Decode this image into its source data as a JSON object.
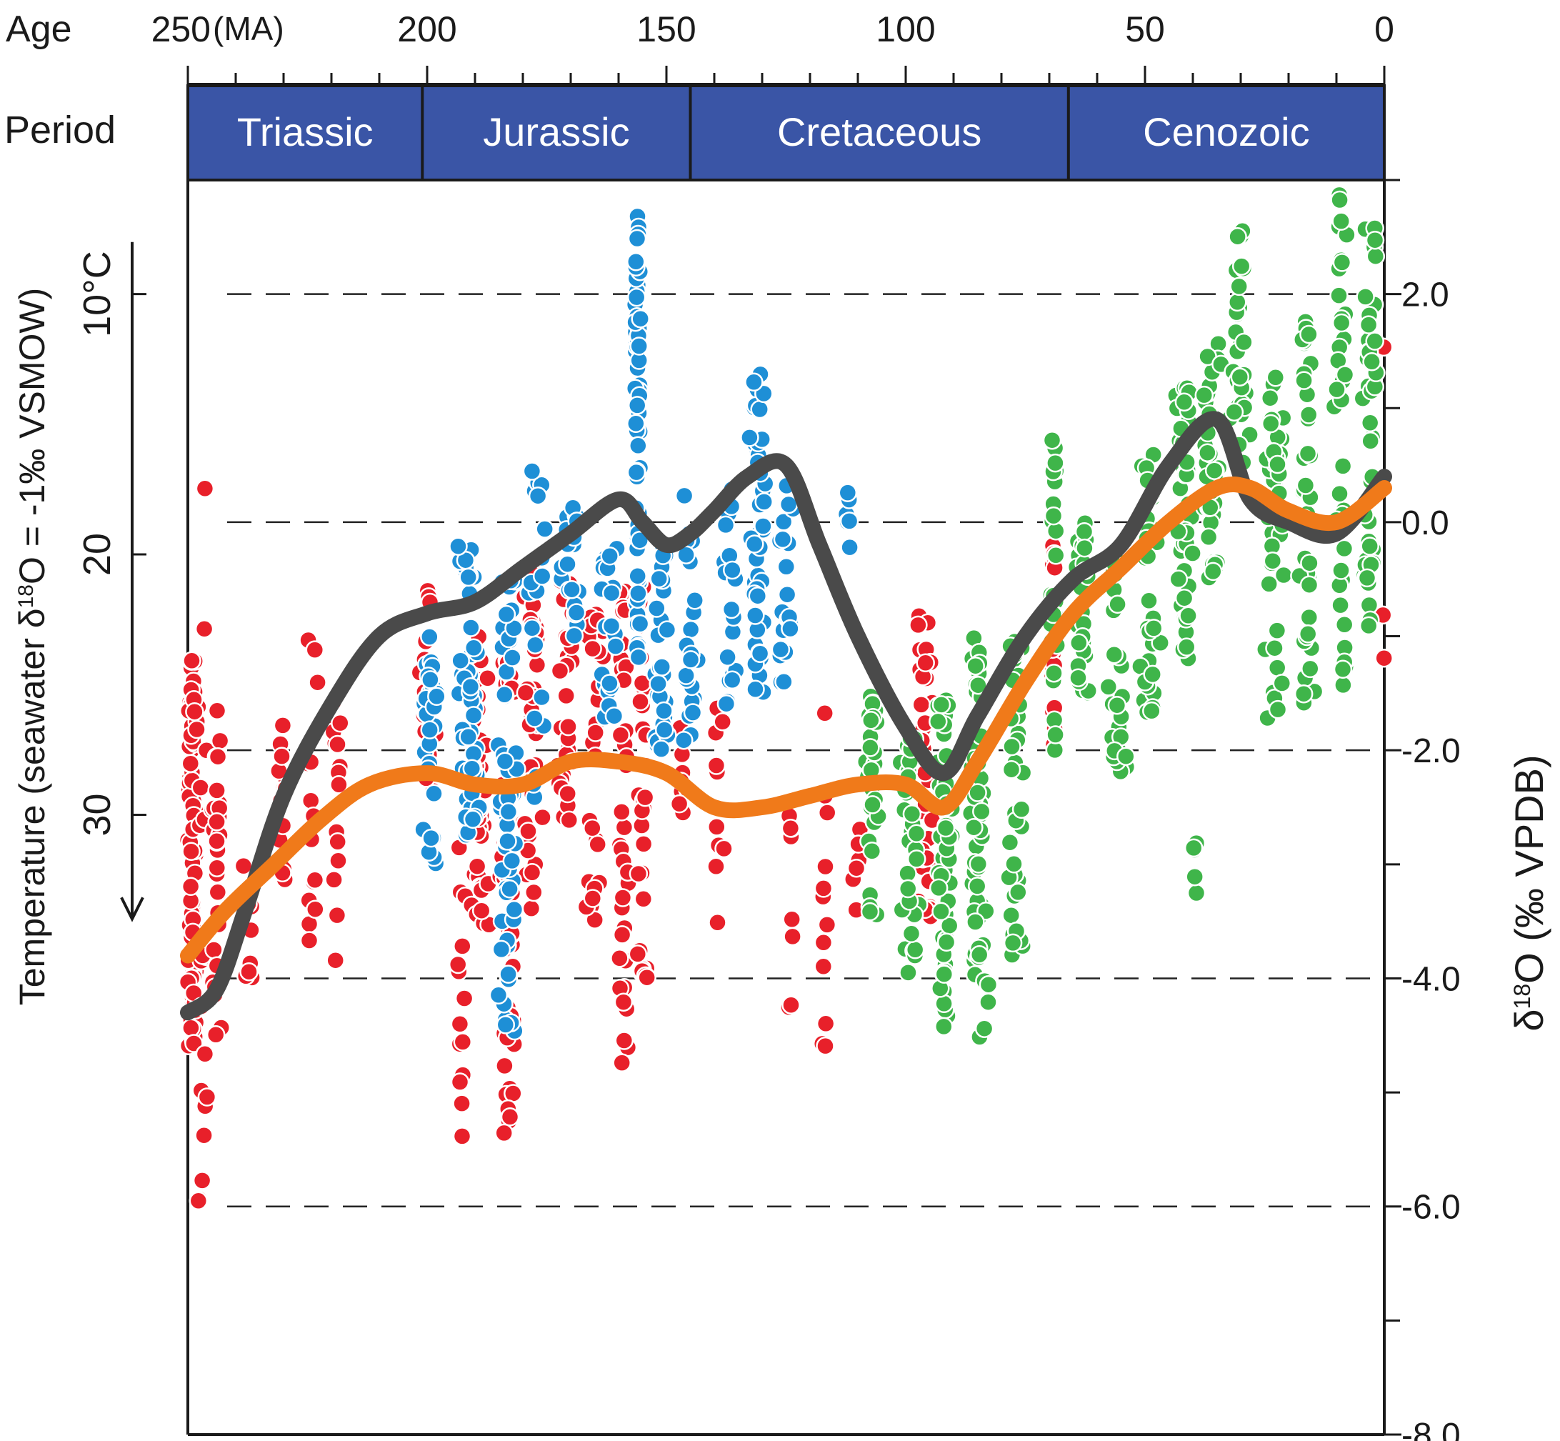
{
  "chart_data": {
    "type": "scatter",
    "top_axis": {
      "label": "Age",
      "unit_label": "(MA)",
      "ticks": [
        {
          "value": 250,
          "label": "250"
        },
        {
          "value": 200,
          "label": "200"
        },
        {
          "value": 150,
          "label": "150"
        },
        {
          "value": 100,
          "label": "100"
        },
        {
          "value": 50,
          "label": "50"
        },
        {
          "value": 0,
          "label": "0"
        }
      ],
      "minor_step": 10,
      "range": [
        250,
        0
      ]
    },
    "period_row": {
      "label": "Period",
      "fill_color": "#3a55a6",
      "periods": [
        {
          "name": "Triassic",
          "start": 251,
          "end": 201
        },
        {
          "name": "Jurassic",
          "start": 201,
          "end": 145
        },
        {
          "name": "Cretaceous",
          "start": 145,
          "end": 66
        },
        {
          "name": "Cenozoic",
          "start": 66,
          "end": 0
        }
      ]
    },
    "left_axis": {
      "label": "Temperature (seawater δ¹⁸O = -1‰ VSMOW)",
      "ticks": [
        {
          "value": 10,
          "label": "10°C"
        },
        {
          "value": 20,
          "label": "20"
        },
        {
          "value": 30,
          "label": "30"
        }
      ],
      "direction": "increases downward"
    },
    "right_axis": {
      "label": "δ¹⁸O (‰ VPDB)",
      "range": [
        3.0,
        -8.0
      ],
      "ticks": [
        {
          "value": 2.0,
          "label": "2.0"
        },
        {
          "value": 0.0,
          "label": "0.0"
        },
        {
          "value": -2.0,
          "label": "-2.0"
        },
        {
          "value": -4.0,
          "label": "-4.0"
        },
        {
          "value": -6.0,
          "label": "-6.0"
        },
        {
          "value": -8.0,
          "label": "-8.0"
        }
      ],
      "minor_ticks": [
        3.0,
        1.0,
        -1.0,
        -3.0,
        -5.0,
        -7.0
      ],
      "dashed_gridlines": [
        2.0,
        0.0,
        -2.0,
        -4.0,
        -6.0
      ]
    },
    "colors": {
      "red": "#e8202a",
      "blue": "#1e8fd6",
      "green": "#3fb54a",
      "black_curve": "#4a4a4a",
      "orange_curve": "#f07a1a"
    },
    "series": [
      {
        "color_key": "red",
        "clusters": [
          {
            "x": 249,
            "y0": -1.2,
            "y1": -4.6,
            "count": 95,
            "spread": 1.5
          },
          {
            "x": 247,
            "y0": 0.6,
            "y1": -6.2,
            "count": 18,
            "spread": 1.5
          },
          {
            "x": 244,
            "y0": -1.6,
            "y1": -4.5,
            "count": 30,
            "spread": 1.5
          },
          {
            "x": 237,
            "y0": -3.0,
            "y1": -4.2,
            "count": 8,
            "spread": 1.5
          },
          {
            "x": 230,
            "y0": -1.7,
            "y1": -3.2,
            "count": 14,
            "spread": 1.5
          },
          {
            "x": 224,
            "y0": -1.0,
            "y1": -4.0,
            "count": 14,
            "spread": 1.5
          },
          {
            "x": 219,
            "y0": -1.5,
            "y1": -4.0,
            "count": 16,
            "spread": 1.5
          },
          {
            "x": 200,
            "y0": -0.6,
            "y1": -2.8,
            "count": 16,
            "spread": 2.0
          },
          {
            "x": 193,
            "y0": -2.8,
            "y1": -5.5,
            "count": 14,
            "spread": 1.2
          },
          {
            "x": 189,
            "y0": -1.0,
            "y1": -3.6,
            "count": 40,
            "spread": 2.5
          },
          {
            "x": 183,
            "y0": -1.2,
            "y1": -5.6,
            "count": 45,
            "spread": 2.0
          },
          {
            "x": 178,
            "y0": -0.4,
            "y1": -3.4,
            "count": 40,
            "spread": 2.5
          },
          {
            "x": 171,
            "y0": -0.5,
            "y1": -2.8,
            "count": 30,
            "spread": 2.5
          },
          {
            "x": 165,
            "y0": -0.8,
            "y1": -3.5,
            "count": 30,
            "spread": 2.5
          },
          {
            "x": 159,
            "y0": -0.6,
            "y1": -4.8,
            "count": 40,
            "spread": 1.5
          },
          {
            "x": 155,
            "y0": -0.5,
            "y1": -4.5,
            "count": 30,
            "spread": 1.5
          },
          {
            "x": 147,
            "y0": -1.6,
            "y1": -2.7,
            "count": 10,
            "spread": 2.0
          },
          {
            "x": 139,
            "y0": -1.3,
            "y1": -3.8,
            "count": 10,
            "spread": 2.0
          },
          {
            "x": 124,
            "y0": -2.5,
            "y1": -4.6,
            "count": 10,
            "spread": 1.0
          },
          {
            "x": 117,
            "y0": -1.4,
            "y1": -4.6,
            "count": 12,
            "spread": 1.0
          },
          {
            "x": 110,
            "y0": -2.0,
            "y1": -3.5,
            "count": 6,
            "spread": 1.5
          },
          {
            "x": 96,
            "y0": -0.8,
            "y1": -3.5,
            "count": 40,
            "spread": 2.5
          },
          {
            "x": 69,
            "y0": -0.2,
            "y1": -2.0,
            "count": 22,
            "spread": 0.6
          },
          {
            "x": 0,
            "y0": 1.8,
            "y1": -1.5,
            "count": 6,
            "spread": 0.5
          }
        ]
      },
      {
        "color_key": "blue",
        "clusters": [
          {
            "x": 199,
            "y0": -1.0,
            "y1": -3.0,
            "count": 30,
            "spread": 2.5
          },
          {
            "x": 191,
            "y0": -0.2,
            "y1": -2.8,
            "count": 50,
            "spread": 3.0
          },
          {
            "x": 183,
            "y0": -0.5,
            "y1": -4.5,
            "count": 55,
            "spread": 3.0
          },
          {
            "x": 177,
            "y0": 0.5,
            "y1": -2.5,
            "count": 20,
            "spread": 3.0
          },
          {
            "x": 170,
            "y0": 0.2,
            "y1": -1.0,
            "count": 20,
            "spread": 3.0
          },
          {
            "x": 162,
            "y0": 0.0,
            "y1": -1.8,
            "count": 22,
            "spread": 2.5
          },
          {
            "x": 156,
            "y0": 2.7,
            "y1": -1.2,
            "count": 70,
            "spread": 0.8
          },
          {
            "x": 151,
            "y0": -0.2,
            "y1": -2.0,
            "count": 30,
            "spread": 2.0
          },
          {
            "x": 145,
            "y0": 0.3,
            "y1": -2.0,
            "count": 22,
            "spread": 2.5
          },
          {
            "x": 137,
            "y0": 0.5,
            "y1": -1.7,
            "count": 20,
            "spread": 2.5
          },
          {
            "x": 131,
            "y0": 1.3,
            "y1": -1.5,
            "count": 45,
            "spread": 2.0
          },
          {
            "x": 125,
            "y0": 0.4,
            "y1": -1.5,
            "count": 20,
            "spread": 2.0
          },
          {
            "x": 112,
            "y0": 0.6,
            "y1": -0.5,
            "count": 6,
            "spread": 0.6
          }
        ]
      },
      {
        "color_key": "green",
        "clusters": [
          {
            "x": 107,
            "y0": -1.5,
            "y1": -3.5,
            "count": 30,
            "spread": 2.0
          },
          {
            "x": 99,
            "y0": -1.8,
            "y1": -4.0,
            "count": 35,
            "spread": 2.5
          },
          {
            "x": 92,
            "y0": -1.5,
            "y1": -4.5,
            "count": 55,
            "spread": 2.5
          },
          {
            "x": 85,
            "y0": -1.0,
            "y1": -4.0,
            "count": 55,
            "spread": 2.5
          },
          {
            "x": 77,
            "y0": -0.8,
            "y1": -3.8,
            "count": 40,
            "spread": 2.5
          },
          {
            "x": 69,
            "y0": 0.8,
            "y1": -2.0,
            "count": 25,
            "spread": 1.0
          },
          {
            "x": 63,
            "y0": 0.0,
            "y1": -1.5,
            "count": 35,
            "spread": 2.5
          },
          {
            "x": 56,
            "y0": -0.3,
            "y1": -2.2,
            "count": 30,
            "spread": 2.5
          },
          {
            "x": 49,
            "y0": 0.6,
            "y1": -1.7,
            "count": 40,
            "spread": 2.5
          },
          {
            "x": 42,
            "y0": 1.3,
            "y1": -1.2,
            "count": 45,
            "spread": 2.5
          },
          {
            "x": 36,
            "y0": 1.6,
            "y1": -0.5,
            "count": 45,
            "spread": 2.5
          },
          {
            "x": 30,
            "y0": 2.7,
            "y1": 0.5,
            "count": 35,
            "spread": 2.5
          },
          {
            "x": 23,
            "y0": 1.3,
            "y1": -1.8,
            "count": 40,
            "spread": 2.5
          },
          {
            "x": 16,
            "y0": 1.8,
            "y1": -1.6,
            "count": 40,
            "spread": 2.5
          },
          {
            "x": 9,
            "y0": 2.9,
            "y1": -1.5,
            "count": 40,
            "spread": 2.0
          },
          {
            "x": 3,
            "y0": 2.9,
            "y1": -1.6,
            "count": 45,
            "spread": 2.0
          },
          {
            "x": 40,
            "y0": -2.8,
            "y1": -3.3,
            "count": 5,
            "spread": 1.5
          },
          {
            "x": 84,
            "y0": -4.0,
            "y1": -4.6,
            "count": 5,
            "spread": 3.0
          }
        ]
      }
    ],
    "curves": [
      {
        "color_key": "black_curve",
        "points": [
          [
            250,
            -4.3
          ],
          [
            244,
            -4.1
          ],
          [
            238,
            -3.4
          ],
          [
            230,
            -2.4
          ],
          [
            220,
            -1.6
          ],
          [
            210,
            -1.0
          ],
          [
            200,
            -0.8
          ],
          [
            190,
            -0.7
          ],
          [
            180,
            -0.4
          ],
          [
            170,
            -0.1
          ],
          [
            160,
            0.2
          ],
          [
            155,
            0.0
          ],
          [
            150,
            -0.2
          ],
          [
            145,
            -0.1
          ],
          [
            140,
            0.1
          ],
          [
            133,
            0.4
          ],
          [
            125,
            0.5
          ],
          [
            118,
            -0.2
          ],
          [
            110,
            -1.0
          ],
          [
            100,
            -1.8
          ],
          [
            92,
            -2.2
          ],
          [
            85,
            -1.7
          ],
          [
            75,
            -1.0
          ],
          [
            65,
            -0.5
          ],
          [
            55,
            -0.2
          ],
          [
            45,
            0.5
          ],
          [
            35,
            0.9
          ],
          [
            28,
            0.2
          ],
          [
            20,
            0.0
          ],
          [
            10,
            -0.1
          ],
          [
            0,
            0.4
          ]
        ]
      },
      {
        "color_key": "orange_curve",
        "points": [
          [
            250,
            -3.8
          ],
          [
            242,
            -3.4
          ],
          [
            232,
            -3.0
          ],
          [
            222,
            -2.6
          ],
          [
            212,
            -2.3
          ],
          [
            200,
            -2.2
          ],
          [
            190,
            -2.3
          ],
          [
            180,
            -2.3
          ],
          [
            170,
            -2.1
          ],
          [
            160,
            -2.1
          ],
          [
            150,
            -2.2
          ],
          [
            140,
            -2.5
          ],
          [
            130,
            -2.5
          ],
          [
            120,
            -2.4
          ],
          [
            110,
            -2.3
          ],
          [
            100,
            -2.3
          ],
          [
            92,
            -2.5
          ],
          [
            85,
            -2.1
          ],
          [
            75,
            -1.4
          ],
          [
            65,
            -0.8
          ],
          [
            55,
            -0.4
          ],
          [
            45,
            0.0
          ],
          [
            35,
            0.3
          ],
          [
            28,
            0.3
          ],
          [
            20,
            0.1
          ],
          [
            10,
            0.0
          ],
          [
            0,
            0.3
          ]
        ]
      }
    ],
    "temp_arrow": {
      "from_value": 8,
      "to_value": 34
    }
  }
}
